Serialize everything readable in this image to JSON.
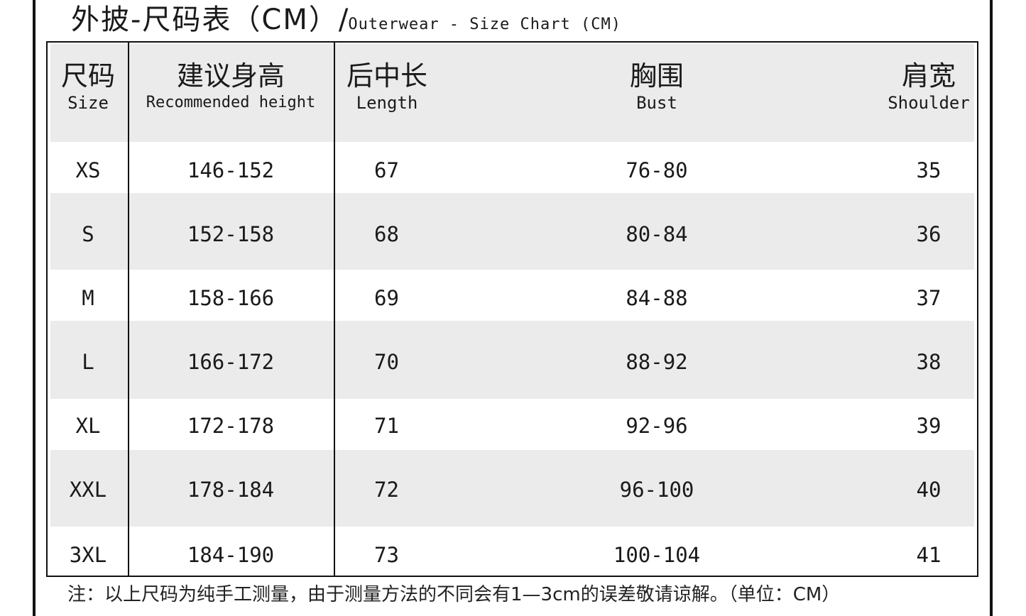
{
  "title": {
    "cn": "外披-尺码表（CM）",
    "separator": "/",
    "en": "Outerwear - Size Chart (CM)"
  },
  "headers": [
    {
      "cn": "尺码",
      "en": "Size"
    },
    {
      "cn": "建议身高",
      "en": "Recommended height"
    },
    {
      "cn": "后中长",
      "en": "Length"
    },
    {
      "cn": "胸围",
      "en": "Bust"
    },
    {
      "cn": "肩宽",
      "en": "Shoulder"
    }
  ],
  "rows": [
    [
      "XS",
      "146-152",
      "67",
      "76-80",
      "35"
    ],
    [
      "S",
      "152-158",
      "68",
      "80-84",
      "36"
    ],
    [
      "M",
      "158-166",
      "69",
      "84-88",
      "37"
    ],
    [
      "L",
      "166-172",
      "70",
      "88-92",
      "38"
    ],
    [
      "XL",
      "172-178",
      "71",
      "92-96",
      "39"
    ],
    [
      "XXL",
      "178-184",
      "72",
      "96-100",
      "40"
    ],
    [
      "3XL",
      "184-190",
      "73",
      "100-104",
      "41"
    ]
  ],
  "note": "注：以上尺码为纯手工测量，由于测量方法的不同会有1—3cm的误差敬请谅解。（单位：CM）",
  "colors": {
    "band": "#ebebeb",
    "border": "#111111"
  }
}
